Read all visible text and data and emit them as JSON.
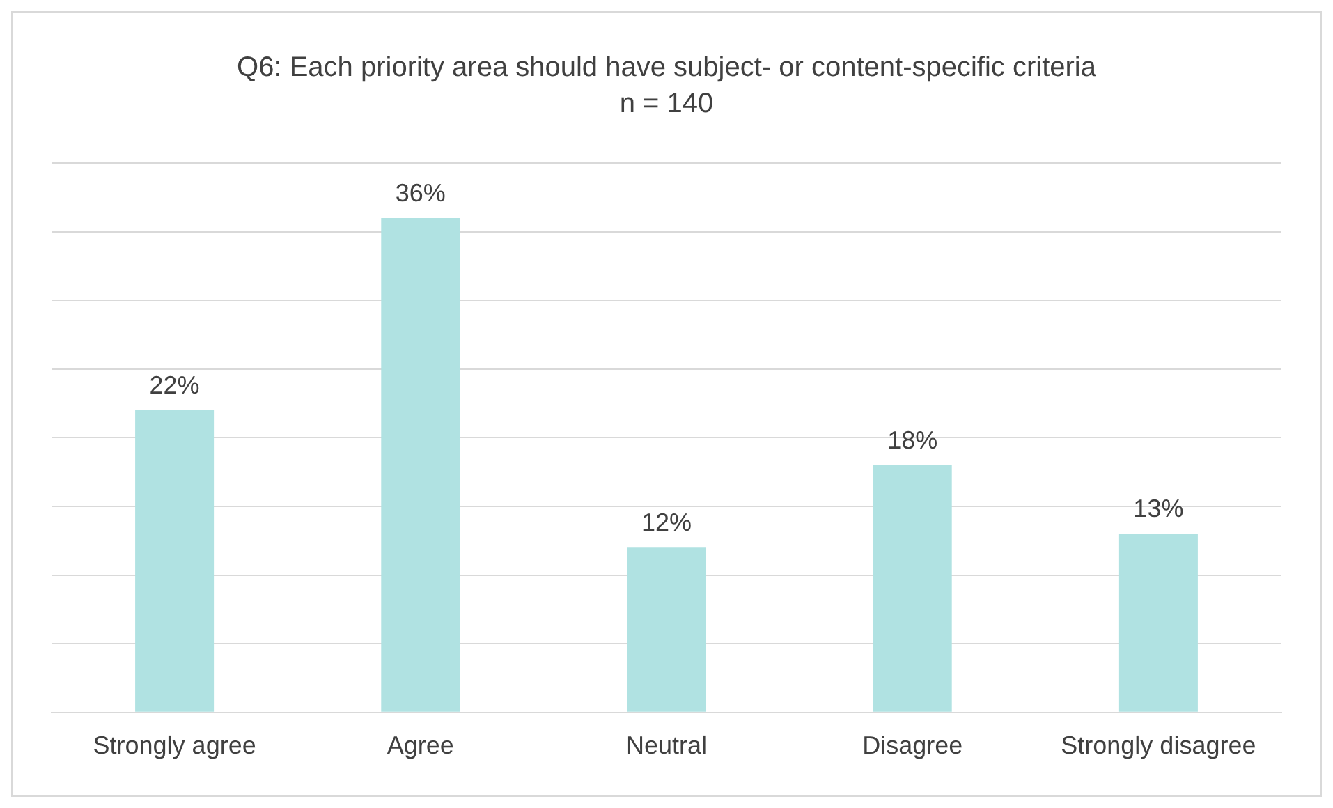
{
  "chart_data": {
    "type": "bar",
    "title": "Q6: Each priority area should have subject- or content-specific criteria",
    "subtitle": "n = 140",
    "categories": [
      "Strongly agree",
      "Agree",
      "Neutral",
      "Disagree",
      "Strongly disagree"
    ],
    "values": [
      22,
      36,
      12,
      18,
      13
    ],
    "color": "#b0e2e2",
    "value_labels": [
      "22%",
      "36%",
      "12%",
      "18%",
      "13%"
    ],
    "ylim": [
      0,
      40
    ],
    "yticks": [
      {
        "value": 0,
        "label": null
      },
      {
        "value": 5,
        "label": null
      },
      {
        "value": 10,
        "label": null
      },
      {
        "value": 15,
        "label": null
      },
      {
        "value": 20,
        "label": null
      },
      {
        "value": 25,
        "label": null
      },
      {
        "value": 30,
        "label": null
      },
      {
        "value": 35,
        "label": null
      },
      {
        "value": 40,
        "label": null
      }
    ],
    "grid": "y",
    "legend": false,
    "tick_labels": "x"
  }
}
